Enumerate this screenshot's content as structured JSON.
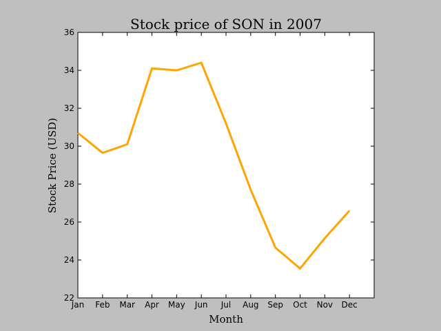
{
  "chart_data": {
    "type": "line",
    "title": "Stock price of SON in 2007",
    "xlabel": "Month",
    "ylabel": "Stock Price (USD)",
    "categories": [
      "Jan",
      "Feb",
      "Mar",
      "Apr",
      "May",
      "Jun",
      "Jul",
      "Aug",
      "Sep",
      "Oct",
      "Nov",
      "Dec"
    ],
    "ylim": [
      22,
      36
    ],
    "yticks": [
      22,
      24,
      26,
      28,
      30,
      32,
      34,
      36
    ],
    "series": [
      {
        "values": [
          30.7,
          29.65,
          30.1,
          34.1,
          34.0,
          34.4,
          31.2,
          27.7,
          24.65,
          23.55,
          25.15,
          26.6
        ],
        "color": "#FFA500"
      }
    ],
    "grid": false,
    "legend": "none",
    "plot_background": "#ffffff",
    "figure_background": "#bfbfbf"
  }
}
